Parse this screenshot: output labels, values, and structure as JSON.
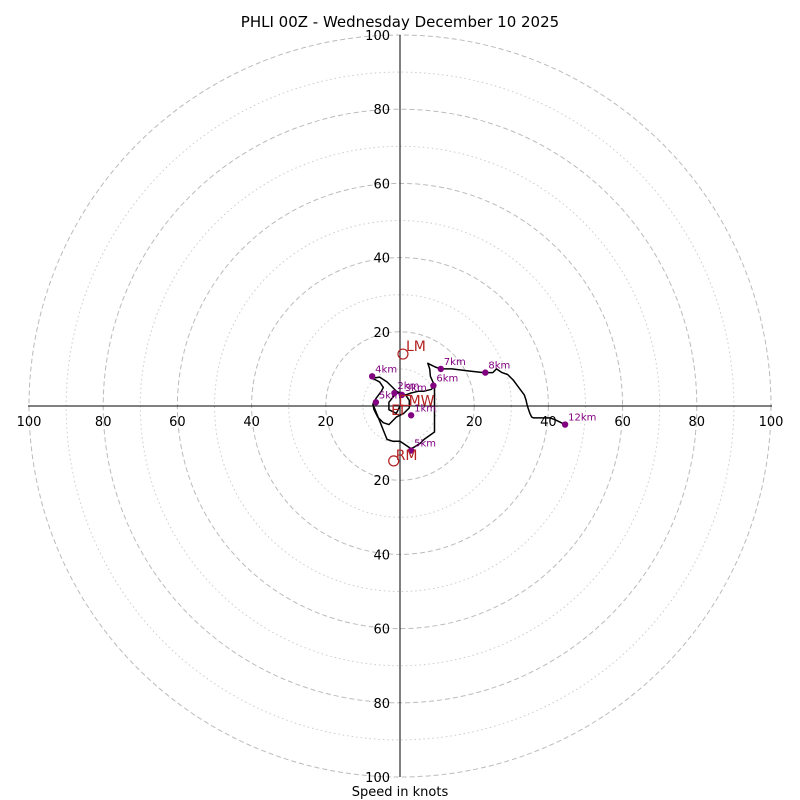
{
  "chart_data": {
    "type": "hodograph",
    "title": "PHLI 00Z - Wednesday December 10 2025",
    "xlabel": "Speed in knots",
    "range": 100,
    "ring_major": [
      20,
      40,
      60,
      80,
      100
    ],
    "ring_minor": [
      10,
      30,
      50,
      70,
      90
    ],
    "tick_labels_left": [
      "100",
      "80",
      "60",
      "40",
      "20"
    ],
    "tick_labels_right": [
      "20",
      "40",
      "60",
      "80",
      "100"
    ],
    "tick_labels_top": [
      "20",
      "40",
      "60",
      "80",
      "100"
    ],
    "tick_labels_bottom": [
      "20",
      "40",
      "60",
      "80",
      "100"
    ],
    "trace_color": "#000000",
    "point_color": "#800080",
    "marker_color": "#b22222",
    "grid_color": "#bbbbbb",
    "trace": [
      [
        0,
        0
      ],
      [
        -1,
        -2
      ],
      [
        -3,
        -1
      ],
      [
        -3,
        1
      ],
      [
        -1,
        3.5
      ],
      [
        1.5,
        3
      ],
      [
        2.5,
        1.5
      ],
      [
        2.5,
        -0.5
      ],
      [
        1,
        -2
      ],
      [
        -1,
        -3
      ],
      [
        -3,
        -5
      ],
      [
        -4.5,
        -4.5
      ],
      [
        -6,
        -3
      ],
      [
        -7,
        -1
      ],
      [
        -7.3,
        0.5
      ],
      [
        -6.5,
        2
      ],
      [
        -5,
        4
      ],
      [
        -4.5,
        5
      ],
      [
        -5.5,
        6.5
      ],
      [
        -7.5,
        7.5
      ],
      [
        -5.5,
        7.8
      ],
      [
        -3.5,
        6.5
      ],
      [
        -2,
        5
      ],
      [
        -1,
        4
      ],
      [
        0,
        3.5
      ],
      [
        1.5,
        3
      ],
      [
        3,
        3.5
      ],
      [
        5,
        4
      ],
      [
        6.5,
        4
      ],
      [
        8.5,
        4.5
      ],
      [
        9.3,
        5.5
      ],
      [
        8.2,
        8
      ],
      [
        8,
        10
      ],
      [
        7.5,
        11.5
      ],
      [
        8.5,
        11
      ],
      [
        9.5,
        10.5
      ],
      [
        11,
        10
      ],
      [
        14,
        10
      ],
      [
        18,
        9.5
      ],
      [
        22.5,
        9
      ],
      [
        25,
        9
      ],
      [
        26,
        10
      ],
      [
        27.5,
        9
      ],
      [
        29,
        8.5
      ],
      [
        30.5,
        7
      ],
      [
        32,
        5
      ],
      [
        33.5,
        3
      ],
      [
        34,
        1.5
      ],
      [
        34.2,
        0.5
      ],
      [
        34.5,
        -0.5
      ],
      [
        35,
        -2
      ],
      [
        35.5,
        -3
      ],
      [
        36,
        -3.2
      ],
      [
        38,
        -3.2
      ],
      [
        40.5,
        -3.2
      ],
      [
        42,
        -3.8
      ],
      [
        44.5,
        -5
      ]
    ],
    "trace_lower": [
      [
        -7.3,
        0.5
      ],
      [
        -6.5,
        -1.5
      ],
      [
        -5.5,
        -4
      ],
      [
        -4.5,
        -6.5
      ],
      [
        -3.5,
        -9
      ],
      [
        -2,
        -9.5
      ],
      [
        0,
        -9.5
      ],
      [
        1.5,
        -10.5
      ],
      [
        3,
        -11.5
      ],
      [
        4,
        -11
      ],
      [
        5.5,
        -10
      ],
      [
        6.5,
        -9
      ],
      [
        9.3,
        -7
      ],
      [
        9.3,
        0
      ],
      [
        9.3,
        5.5
      ]
    ],
    "points": [
      {
        "label": "1km",
        "x": 3,
        "y": -2.5
      },
      {
        "label": "2km",
        "x": -1.5,
        "y": 3.5
      },
      {
        "label": "3km",
        "x": 0.5,
        "y": 3
      },
      {
        "label": "4km",
        "x": -7.5,
        "y": 8
      },
      {
        "label": "5km",
        "x": 3,
        "y": -12
      },
      {
        "label": "5km",
        "x": -6.5,
        "y": 1
      },
      {
        "label": "6km",
        "x": 9,
        "y": 5.5
      },
      {
        "label": "7km",
        "x": 11,
        "y": 10
      },
      {
        "label": "8km",
        "x": 23,
        "y": 9
      },
      {
        "label": "12km",
        "x": 44.5,
        "y": -5
      }
    ],
    "markers": [
      {
        "label": "LM",
        "x": 0.8,
        "y": 14
      },
      {
        "label": "RM",
        "x": -1.7,
        "y": -14.8
      },
      {
        "label": "MW",
        "x": 1.5,
        "y": 1.5
      },
      {
        "label": "EI",
        "x": -0.5,
        "y": -0.5
      }
    ]
  }
}
